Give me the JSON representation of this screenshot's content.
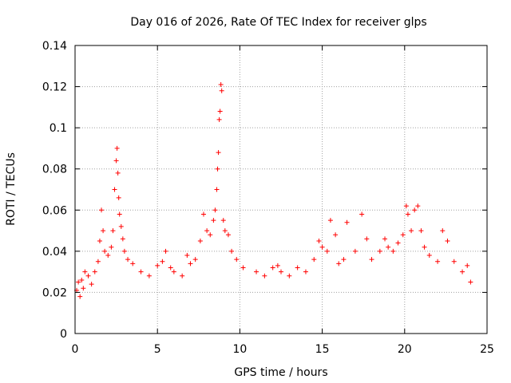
{
  "chart_data": {
    "type": "scatter",
    "title": "Day 016 of 2026, Rate Of TEC Index for receiver glps",
    "xlabel": "GPS time / hours",
    "ylabel": "ROTI / TECUs",
    "xlim": [
      0,
      25
    ],
    "ylim": [
      0,
      0.14
    ],
    "xticks": [
      0,
      5,
      10,
      15,
      20,
      25
    ],
    "yticks": [
      0,
      0.02,
      0.04,
      0.06,
      0.08,
      0.1,
      0.12,
      0.14
    ],
    "xtick_labels": [
      "0",
      "5",
      "10",
      "15",
      "20",
      "25"
    ],
    "ytick_labels": [
      "0",
      "0.02",
      "0.04",
      "0.06",
      "0.08",
      "0.1",
      "0.12",
      "0.14"
    ],
    "grid": true,
    "marker": "+",
    "color": "#ff0000",
    "series": [
      {
        "name": "ROTI",
        "points": [
          [
            0.1,
            0.021
          ],
          [
            0.2,
            0.025
          ],
          [
            0.3,
            0.018
          ],
          [
            0.4,
            0.026
          ],
          [
            0.5,
            0.022
          ],
          [
            0.6,
            0.03
          ],
          [
            0.8,
            0.028
          ],
          [
            1.0,
            0.024
          ],
          [
            1.2,
            0.03
          ],
          [
            1.4,
            0.035
          ],
          [
            1.5,
            0.045
          ],
          [
            1.6,
            0.06
          ],
          [
            1.7,
            0.05
          ],
          [
            1.8,
            0.04
          ],
          [
            2.0,
            0.038
          ],
          [
            2.2,
            0.042
          ],
          [
            2.3,
            0.05
          ],
          [
            2.4,
            0.07
          ],
          [
            2.5,
            0.084
          ],
          [
            2.55,
            0.09
          ],
          [
            2.6,
            0.078
          ],
          [
            2.65,
            0.066
          ],
          [
            2.7,
            0.058
          ],
          [
            2.8,
            0.052
          ],
          [
            2.9,
            0.046
          ],
          [
            3.0,
            0.04
          ],
          [
            3.2,
            0.036
          ],
          [
            3.5,
            0.034
          ],
          [
            4.0,
            0.03
          ],
          [
            4.5,
            0.028
          ],
          [
            5.0,
            0.033
          ],
          [
            5.3,
            0.035
          ],
          [
            5.5,
            0.04
          ],
          [
            5.8,
            0.032
          ],
          [
            6.0,
            0.03
          ],
          [
            6.5,
            0.028
          ],
          [
            6.8,
            0.038
          ],
          [
            7.0,
            0.034
          ],
          [
            7.3,
            0.036
          ],
          [
            7.6,
            0.045
          ],
          [
            7.8,
            0.058
          ],
          [
            8.0,
            0.05
          ],
          [
            8.2,
            0.048
          ],
          [
            8.4,
            0.055
          ],
          [
            8.5,
            0.06
          ],
          [
            8.6,
            0.07
          ],
          [
            8.65,
            0.08
          ],
          [
            8.7,
            0.088
          ],
          [
            8.75,
            0.104
          ],
          [
            8.8,
            0.108
          ],
          [
            8.85,
            0.121
          ],
          [
            8.9,
            0.118
          ],
          [
            9.0,
            0.055
          ],
          [
            9.1,
            0.05
          ],
          [
            9.3,
            0.048
          ],
          [
            9.5,
            0.04
          ],
          [
            9.8,
            0.036
          ],
          [
            10.2,
            0.032
          ],
          [
            11.0,
            0.03
          ],
          [
            11.5,
            0.028
          ],
          [
            12.0,
            0.032
          ],
          [
            12.3,
            0.033
          ],
          [
            12.5,
            0.03
          ],
          [
            13.0,
            0.028
          ],
          [
            13.5,
            0.032
          ],
          [
            14.0,
            0.03
          ],
          [
            14.5,
            0.036
          ],
          [
            14.8,
            0.045
          ],
          [
            15.0,
            0.042
          ],
          [
            15.3,
            0.04
          ],
          [
            15.5,
            0.055
          ],
          [
            15.8,
            0.048
          ],
          [
            16.0,
            0.034
          ],
          [
            16.3,
            0.036
          ],
          [
            16.5,
            0.054
          ],
          [
            17.0,
            0.04
          ],
          [
            17.4,
            0.058
          ],
          [
            17.7,
            0.046
          ],
          [
            18.0,
            0.036
          ],
          [
            18.5,
            0.04
          ],
          [
            18.8,
            0.046
          ],
          [
            19.0,
            0.042
          ],
          [
            19.3,
            0.04
          ],
          [
            19.6,
            0.044
          ],
          [
            19.9,
            0.048
          ],
          [
            20.1,
            0.062
          ],
          [
            20.2,
            0.058
          ],
          [
            20.4,
            0.05
          ],
          [
            20.6,
            0.06
          ],
          [
            20.8,
            0.062
          ],
          [
            21.0,
            0.05
          ],
          [
            21.2,
            0.042
          ],
          [
            21.5,
            0.038
          ],
          [
            22.0,
            0.035
          ],
          [
            22.3,
            0.05
          ],
          [
            22.6,
            0.045
          ],
          [
            23.0,
            0.035
          ],
          [
            23.5,
            0.03
          ],
          [
            23.8,
            0.033
          ],
          [
            24.0,
            0.025
          ]
        ]
      }
    ]
  }
}
